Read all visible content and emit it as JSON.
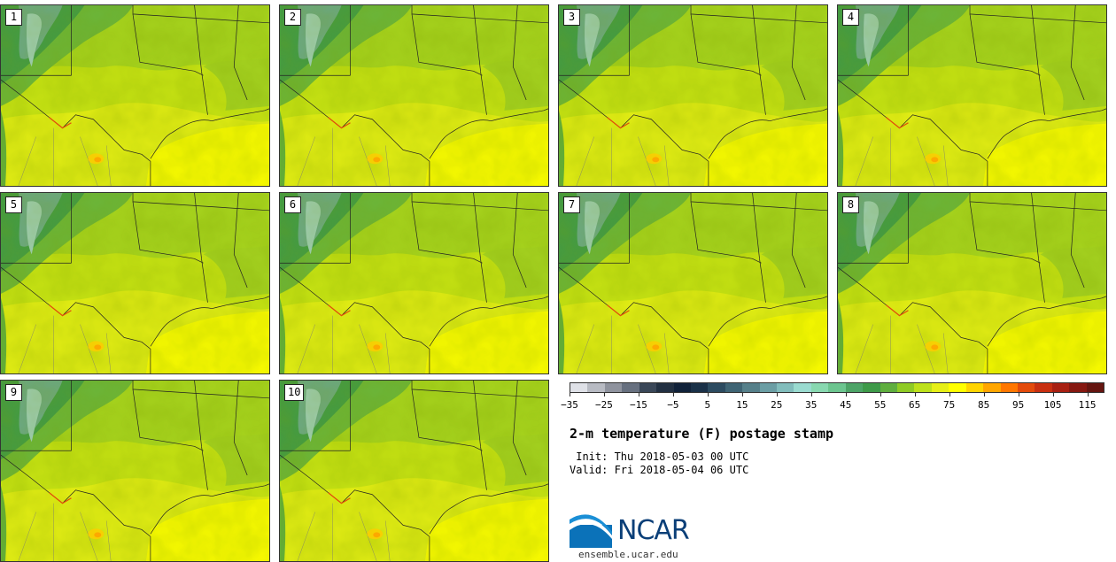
{
  "panels": [
    "1",
    "2",
    "3",
    "4",
    "5",
    "6",
    "7",
    "8",
    "9",
    "10"
  ],
  "colorbar": {
    "colors": [
      "#dfe1e7",
      "#b8bbc3",
      "#8f939e",
      "#67707f",
      "#3a4758",
      "#223042",
      "#11223a",
      "#1a3148",
      "#2c4b60",
      "#3f6474",
      "#56808a",
      "#6b9ea4",
      "#82bdbc",
      "#9adbd0",
      "#88d8b0",
      "#6cc58f",
      "#4da467",
      "#3e9a49",
      "#5fae3e",
      "#8fcb25",
      "#bde11b",
      "#e6ef17",
      "#ffff00",
      "#ffd400",
      "#ffa600",
      "#ff7700",
      "#e34b0b",
      "#c82f10",
      "#a82012",
      "#861811",
      "#651510"
    ],
    "tick_labels": [
      "−35",
      "−25",
      "−15",
      "−5",
      "5",
      "15",
      "25",
      "35",
      "45",
      "55",
      "65",
      "75",
      "85",
      "95",
      "105",
      "115"
    ]
  },
  "title": "2-m temperature (F) postage stamp",
  "init_line": " Init: Thu 2018-05-03 00 UTC",
  "valid_line": "Valid: Fri 2018-05-04 06 UTC",
  "logo": {
    "name": "NCAR",
    "url": "ensemble.ucar.edu"
  }
}
